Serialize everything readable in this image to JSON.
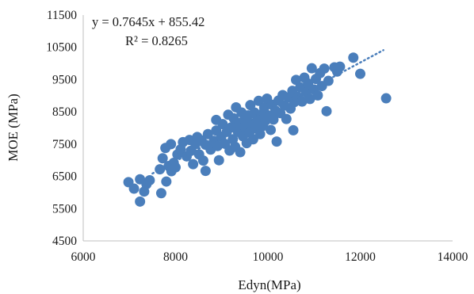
{
  "chart_data": {
    "type": "scatter",
    "xlabel": "Edyn(MPa)",
    "ylabel": "MOE (MPa)",
    "xlim": [
      6000,
      14000
    ],
    "ylim": [
      4500,
      11500
    ],
    "xticks": [
      "6000",
      "8000",
      "10000",
      "12000",
      "14000"
    ],
    "yticks": [
      "4500",
      "5500",
      "6500",
      "7500",
      "8500",
      "9500",
      "10500",
      "11500"
    ],
    "grid": false,
    "legend": "none",
    "marker_color": "#4a7ebb",
    "trendline": {
      "type": "linear",
      "slope": 0.7645,
      "intercept": 855.42,
      "x_range": [
        7500,
        12500
      ],
      "style": "dotted",
      "color": "#4a7ebb"
    },
    "annotations": {
      "equation": "y = 0.7645x + 855.42",
      "r_squared": "R² = 0.8265"
    },
    "points": [
      [
        6980,
        6320
      ],
      [
        7100,
        6120
      ],
      [
        7230,
        5720
      ],
      [
        7230,
        6410
      ],
      [
        7320,
        6030
      ],
      [
        7370,
        6260
      ],
      [
        7440,
        6380
      ],
      [
        7660,
        6720
      ],
      [
        7690,
        5980
      ],
      [
        7720,
        7060
      ],
      [
        7800,
        6340
      ],
      [
        7780,
        7380
      ],
      [
        7850,
        6820
      ],
      [
        7900,
        7500
      ],
      [
        7910,
        6660
      ],
      [
        7960,
        6920
      ],
      [
        8040,
        7180
      ],
      [
        8000,
        6780
      ],
      [
        8110,
        7340
      ],
      [
        8160,
        7560
      ],
      [
        8240,
        7120
      ],
      [
        8300,
        7630
      ],
      [
        8330,
        7290
      ],
      [
        8380,
        6880
      ],
      [
        8430,
        7500
      ],
      [
        8470,
        7720
      ],
      [
        8510,
        7180
      ],
      [
        8560,
        7620
      ],
      [
        8600,
        6990
      ],
      [
        8650,
        7480
      ],
      [
        8700,
        7810
      ],
      [
        8650,
        6670
      ],
      [
        8760,
        7330
      ],
      [
        8830,
        7600
      ],
      [
        8880,
        7920
      ],
      [
        8910,
        7440
      ],
      [
        8880,
        8250
      ],
      [
        8940,
        7000
      ],
      [
        8990,
        7730
      ],
      [
        9020,
        8120
      ],
      [
        9070,
        7510
      ],
      [
        9110,
        7880
      ],
      [
        9140,
        8410
      ],
      [
        9170,
        7300
      ],
      [
        9210,
        8020
      ],
      [
        9240,
        7650
      ],
      [
        9260,
        8300
      ],
      [
        9290,
        7420
      ],
      [
        9310,
        8640
      ],
      [
        9350,
        7880
      ],
      [
        9380,
        8150
      ],
      [
        9400,
        7250
      ],
      [
        9430,
        8480
      ],
      [
        9460,
        7740
      ],
      [
        9490,
        8260
      ],
      [
        9510,
        8010
      ],
      [
        9540,
        7530
      ],
      [
        9570,
        8390
      ],
      [
        9600,
        7860
      ],
      [
        9620,
        8710
      ],
      [
        9650,
        8130
      ],
      [
        9680,
        7650
      ],
      [
        9710,
        8480
      ],
      [
        9740,
        7990
      ],
      [
        9770,
        8270
      ],
      [
        9800,
        8840
      ],
      [
        9830,
        7810
      ],
      [
        9860,
        8420
      ],
      [
        9890,
        8060
      ],
      [
        9920,
        8630
      ],
      [
        9950,
        8230
      ],
      [
        9980,
        8910
      ],
      [
        10020,
        8380
      ],
      [
        10060,
        7940
      ],
      [
        10090,
        8720
      ],
      [
        10120,
        8260
      ],
      [
        10160,
        8540
      ],
      [
        10190,
        7580
      ],
      [
        10230,
        8850
      ],
      [
        10270,
        8460
      ],
      [
        10320,
        9020
      ],
      [
        10360,
        8700
      ],
      [
        10400,
        8280
      ],
      [
        10440,
        8950
      ],
      [
        10490,
        8600
      ],
      [
        10530,
        9150
      ],
      [
        10570,
        8800
      ],
      [
        10550,
        7930
      ],
      [
        10610,
        9490
      ],
      [
        10650,
        8960
      ],
      [
        10700,
        9260
      ],
      [
        10740,
        8820
      ],
      [
        10790,
        9560
      ],
      [
        10830,
        9100
      ],
      [
        10870,
        9380
      ],
      [
        10910,
        8900
      ],
      [
        10950,
        9850
      ],
      [
        11000,
        9190
      ],
      [
        11040,
        9520
      ],
      [
        11080,
        9010
      ],
      [
        11130,
        9700
      ],
      [
        11170,
        9300
      ],
      [
        11220,
        9840
      ],
      [
        11270,
        8520
      ],
      [
        11310,
        9460
      ],
      [
        11440,
        9880
      ],
      [
        11500,
        9750
      ],
      [
        11560,
        9900
      ],
      [
        11850,
        10180
      ],
      [
        12000,
        9680
      ],
      [
        12560,
        8920
      ]
    ]
  }
}
